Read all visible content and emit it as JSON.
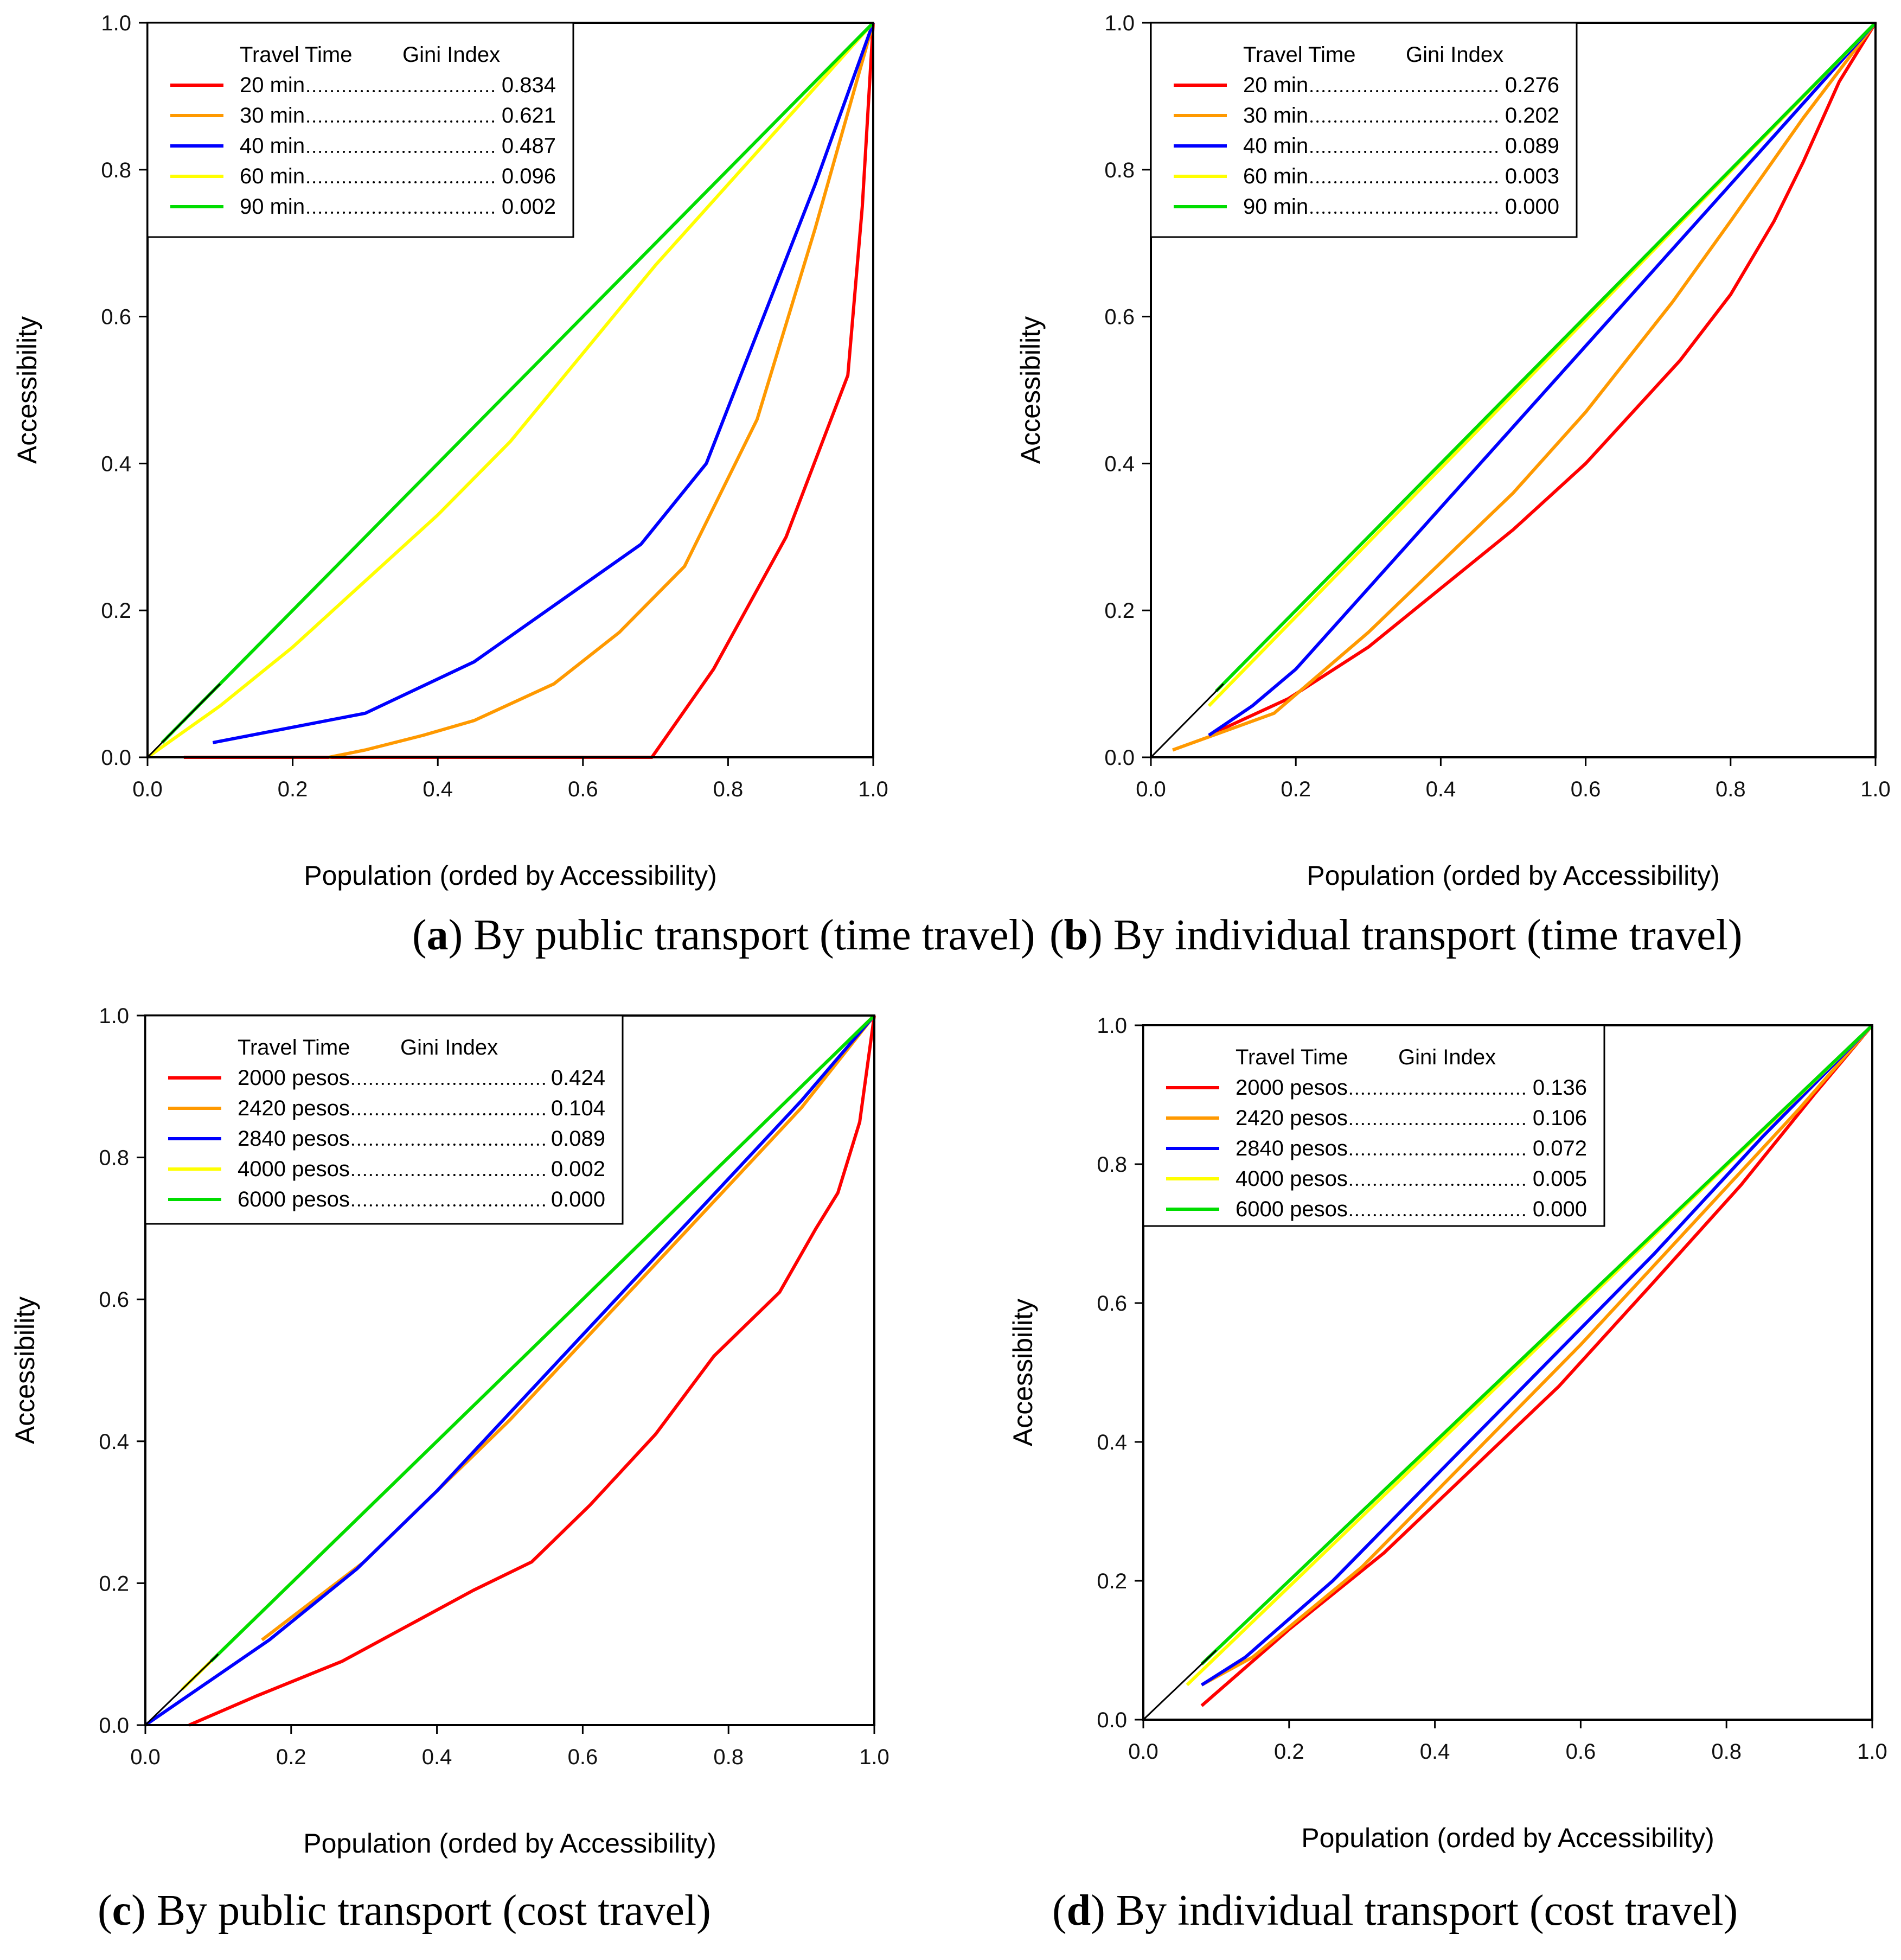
{
  "colors": {
    "red": "#ff0000",
    "orange": "#ff9900",
    "blue": "#0000ff",
    "yellow": "#ffff00",
    "green": "#00dd00",
    "equality": "#000000"
  },
  "chart_data": [
    {
      "type": "line",
      "caption_letter": "a",
      "caption_text": "By public transport (time travel)",
      "xlabel": "Population (orded by Accessibility)",
      "ylabel": "Accessibility",
      "xlim": [
        0,
        1
      ],
      "ylim": [
        0,
        1
      ],
      "xticks": [
        "0.0",
        "0.2",
        "0.4",
        "0.6",
        "0.8",
        "1.0"
      ],
      "yticks": [
        "0.0",
        "0.2",
        "0.4",
        "0.6",
        "0.8",
        "1.0"
      ],
      "grid": false,
      "legend_position": "top-left",
      "legend_header": [
        "Travel Time",
        "Gini Index"
      ],
      "series": [
        {
          "name": "20 min",
          "gini": "0.834",
          "color": "#ff0000",
          "points": [
            [
              0.05,
              0
            ],
            [
              0.695,
              0
            ],
            [
              0.78,
              0.12
            ],
            [
              0.88,
              0.3
            ],
            [
              0.965,
              0.52
            ],
            [
              0.985,
              0.75
            ],
            [
              1.0,
              1.0
            ]
          ]
        },
        {
          "name": "30 min",
          "gini": "0.621",
          "color": "#ff9900",
          "points": [
            [
              0.25,
              0
            ],
            [
              0.3,
              0.01
            ],
            [
              0.38,
              0.03
            ],
            [
              0.45,
              0.05
            ],
            [
              0.56,
              0.1
            ],
            [
              0.65,
              0.17
            ],
            [
              0.74,
              0.26
            ],
            [
              0.84,
              0.46
            ],
            [
              0.92,
              0.72
            ],
            [
              1.0,
              1.0
            ]
          ]
        },
        {
          "name": "40 min",
          "gini": "0.487",
          "color": "#0000ff",
          "points": [
            [
              0.09,
              0.02
            ],
            [
              0.3,
              0.06
            ],
            [
              0.45,
              0.13
            ],
            [
              0.68,
              0.29
            ],
            [
              0.77,
              0.4
            ],
            [
              0.92,
              0.78
            ],
            [
              1.0,
              1.0
            ]
          ]
        },
        {
          "name": "60 min",
          "gini": "0.096",
          "color": "#ffff00",
          "points": [
            [
              0,
              0
            ],
            [
              0.1,
              0.07
            ],
            [
              0.2,
              0.15
            ],
            [
              0.3,
              0.24
            ],
            [
              0.4,
              0.33
            ],
            [
              0.5,
              0.43
            ],
            [
              0.6,
              0.55
            ],
            [
              0.7,
              0.67
            ],
            [
              0.8,
              0.78
            ],
            [
              0.9,
              0.89
            ],
            [
              1.0,
              1.0
            ]
          ]
        },
        {
          "name": "90 min",
          "gini": "0.002",
          "color": "#00dd00",
          "points": [
            [
              0.02,
              0.02
            ],
            [
              1.0,
              1.0
            ]
          ]
        }
      ]
    },
    {
      "type": "line",
      "caption_letter": "b",
      "caption_text": "By individual transport (time travel)",
      "xlabel": "Population (orded by Accessibility)",
      "ylabel": "Accessibility",
      "xlim": [
        0,
        1
      ],
      "ylim": [
        0,
        1
      ],
      "xticks": [
        "0.0",
        "0.2",
        "0.4",
        "0.6",
        "0.8",
        "1.0"
      ],
      "yticks": [
        "0.0",
        "0.2",
        "0.4",
        "0.6",
        "0.8",
        "1.0"
      ],
      "grid": false,
      "legend_position": "top-left",
      "legend_header": [
        "Travel Time",
        "Gini Index"
      ],
      "series": [
        {
          "name": "20 min",
          "gini": "0.276",
          "color": "#ff0000",
          "points": [
            [
              0.08,
              0.03
            ],
            [
              0.19,
              0.08
            ],
            [
              0.3,
              0.15
            ],
            [
              0.4,
              0.23
            ],
            [
              0.5,
              0.31
            ],
            [
              0.6,
              0.4
            ],
            [
              0.73,
              0.54
            ],
            [
              0.8,
              0.63
            ],
            [
              0.86,
              0.73
            ],
            [
              0.9,
              0.81
            ],
            [
              0.95,
              0.92
            ],
            [
              1.0,
              1.0
            ]
          ]
        },
        {
          "name": "30 min",
          "gini": "0.202",
          "color": "#ff9900",
          "points": [
            [
              0.03,
              0.01
            ],
            [
              0.17,
              0.06
            ],
            [
              0.3,
              0.17
            ],
            [
              0.5,
              0.36
            ],
            [
              0.6,
              0.47
            ],
            [
              0.72,
              0.62
            ],
            [
              0.8,
              0.73
            ],
            [
              0.9,
              0.87
            ],
            [
              1.0,
              1.0
            ]
          ]
        },
        {
          "name": "40 min",
          "gini": "0.089",
          "color": "#0000ff",
          "points": [
            [
              0.08,
              0.03
            ],
            [
              0.14,
              0.07
            ],
            [
              0.2,
              0.12
            ],
            [
              0.3,
              0.23
            ],
            [
              0.4,
              0.34
            ],
            [
              0.5,
              0.45
            ],
            [
              0.6,
              0.56
            ],
            [
              0.7,
              0.67
            ],
            [
              0.8,
              0.78
            ],
            [
              0.9,
              0.89
            ],
            [
              1.0,
              1.0
            ]
          ]
        },
        {
          "name": "60 min",
          "gini": "0.003",
          "color": "#ffff00",
          "points": [
            [
              0.08,
              0.07
            ],
            [
              1.0,
              1.0
            ]
          ]
        },
        {
          "name": "90 min",
          "gini": "0.000",
          "color": "#00dd00",
          "points": [
            [
              0.09,
              0.09
            ],
            [
              1.0,
              1.0
            ]
          ]
        }
      ]
    },
    {
      "type": "line",
      "caption_letter": "c",
      "caption_text": "By public transport (cost travel)",
      "xlabel": "Population (orded by Accessibility)",
      "ylabel": "Accessibility",
      "xlim": [
        0,
        1
      ],
      "ylim": [
        0,
        1
      ],
      "xticks": [
        "0.0",
        "0.2",
        "0.4",
        "0.6",
        "0.8",
        "1.0"
      ],
      "yticks": [
        "0.0",
        "0.2",
        "0.4",
        "0.6",
        "0.8",
        "1.0"
      ],
      "grid": false,
      "legend_position": "top-left",
      "legend_header": [
        "Travel Time",
        "Gini Index"
      ],
      "series": [
        {
          "name": "2000 pesos",
          "gini": "0.424",
          "color": "#ff0000",
          "points": [
            [
              0.06,
              0
            ],
            [
              0.15,
              0.04
            ],
            [
              0.27,
              0.09
            ],
            [
              0.45,
              0.19
            ],
            [
              0.53,
              0.23
            ],
            [
              0.61,
              0.31
            ],
            [
              0.7,
              0.41
            ],
            [
              0.78,
              0.52
            ],
            [
              0.87,
              0.61
            ],
            [
              0.92,
              0.7
            ],
            [
              0.95,
              0.75
            ],
            [
              0.98,
              0.85
            ],
            [
              1.0,
              1.0
            ]
          ]
        },
        {
          "name": "2420 pesos",
          "gini": "0.104",
          "color": "#ff9900",
          "points": [
            [
              0.16,
              0.12
            ],
            [
              0.3,
              0.23
            ],
            [
              0.4,
              0.33
            ],
            [
              0.5,
              0.43
            ],
            [
              0.6,
              0.54
            ],
            [
              0.7,
              0.65
            ],
            [
              0.8,
              0.76
            ],
            [
              0.9,
              0.87
            ],
            [
              1.0,
              1.0
            ]
          ]
        },
        {
          "name": "2840 pesos",
          "gini": "0.089",
          "color": "#0000ff",
          "points": [
            [
              0,
              0
            ],
            [
              0.17,
              0.12
            ],
            [
              0.29,
              0.22
            ],
            [
              0.4,
              0.33
            ],
            [
              0.5,
              0.44
            ],
            [
              0.6,
              0.55
            ],
            [
              0.7,
              0.66
            ],
            [
              0.8,
              0.77
            ],
            [
              0.9,
              0.88
            ],
            [
              1.0,
              1.0
            ]
          ]
        },
        {
          "name": "4000 pesos",
          "gini": "0.002",
          "color": "#ffff00",
          "points": [
            [
              0.05,
              0.05
            ],
            [
              1.0,
              1.0
            ]
          ]
        },
        {
          "name": "6000 pesos",
          "gini": "0.000",
          "color": "#00dd00",
          "points": [
            [
              0.09,
              0.09
            ],
            [
              1.0,
              1.0
            ]
          ]
        }
      ]
    },
    {
      "type": "line",
      "caption_letter": "d",
      "caption_text": "By individual transport (cost travel)",
      "xlabel": "Population (orded by Accessibility)",
      "ylabel": "Accessibility",
      "xlim": [
        0,
        1
      ],
      "ylim": [
        0,
        1
      ],
      "xticks": [
        "0.0",
        "0.2",
        "0.4",
        "0.6",
        "0.8",
        "1.0"
      ],
      "yticks": [
        "0.0",
        "0.2",
        "0.4",
        "0.6",
        "0.8",
        "1.0"
      ],
      "grid": false,
      "legend_position": "top-left",
      "legend_header": [
        "Travel Time",
        "Gini Index"
      ],
      "series": [
        {
          "name": "2000 pesos",
          "gini": "0.136",
          "color": "#ff0000",
          "points": [
            [
              0.08,
              0.02
            ],
            [
              0.2,
              0.13
            ],
            [
              0.33,
              0.24
            ],
            [
              0.45,
              0.36
            ],
            [
              0.57,
              0.48
            ],
            [
              0.7,
              0.63
            ],
            [
              0.82,
              0.77
            ],
            [
              0.92,
              0.9
            ],
            [
              1.0,
              1.0
            ]
          ]
        },
        {
          "name": "2420 pesos",
          "gini": "0.106",
          "color": "#ff9900",
          "points": [
            [
              0.08,
              0.05
            ],
            [
              0.15,
              0.09
            ],
            [
              0.3,
              0.22
            ],
            [
              0.45,
              0.38
            ],
            [
              0.6,
              0.54
            ],
            [
              0.75,
              0.71
            ],
            [
              0.9,
              0.88
            ],
            [
              1.0,
              1.0
            ]
          ]
        },
        {
          "name": "2840 pesos",
          "gini": "0.072",
          "color": "#0000ff",
          "points": [
            [
              0.08,
              0.05
            ],
            [
              0.14,
              0.09
            ],
            [
              0.26,
              0.2
            ],
            [
              0.4,
              0.35
            ],
            [
              0.55,
              0.51
            ],
            [
              0.7,
              0.67
            ],
            [
              0.85,
              0.84
            ],
            [
              1.0,
              1.0
            ]
          ]
        },
        {
          "name": "4000 pesos",
          "gini": "0.005",
          "color": "#ffff00",
          "points": [
            [
              0.06,
              0.05
            ],
            [
              1.0,
              1.0
            ]
          ]
        },
        {
          "name": "6000 pesos",
          "gini": "0.000",
          "color": "#00dd00",
          "points": [
            [
              0.08,
              0.08
            ],
            [
              1.0,
              1.0
            ]
          ]
        }
      ]
    }
  ]
}
